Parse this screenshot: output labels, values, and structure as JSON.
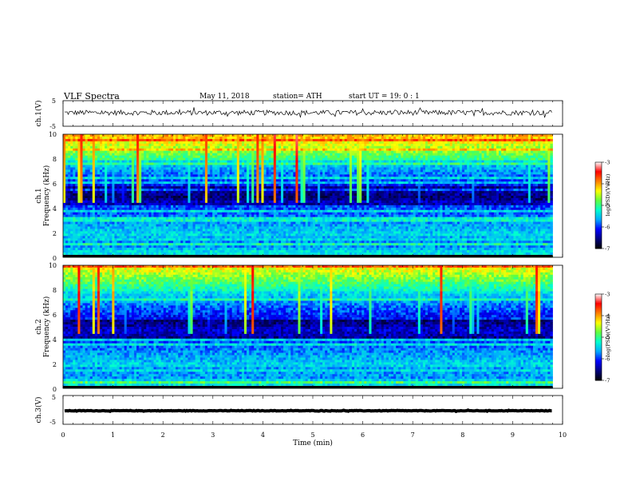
{
  "header": {
    "title": "VLF  Spectra",
    "date": "May 11, 2018",
    "station": "station= ATH",
    "start": "start  UT  =    19: 0   : 1"
  },
  "chart_data": {
    "type": "heatmap",
    "xlabel": "Time  (min)",
    "xlim": [
      0,
      10
    ],
    "x_ticks": [
      "0",
      "1",
      "2",
      "3",
      "4",
      "5",
      "6",
      "7",
      "8",
      "9",
      "10"
    ],
    "data_end_min": 9.8,
    "panels": [
      {
        "id": "ch1-waveform",
        "type": "line",
        "ylabel": "ch.1(V)",
        "ylim": [
          -5,
          5
        ],
        "y_ticks": [
          "5",
          "-5"
        ],
        "trace_level_V": 0.3,
        "noise_amplitude_V": 1.0
      },
      {
        "id": "ch1-spectrogram",
        "type": "heatmap",
        "channel_label": "ch.1",
        "ylabel": "Frequency  (kHz)",
        "ylim": [
          0,
          10
        ],
        "y_ticks": [
          "0",
          "2",
          "4",
          "6",
          "8",
          "10"
        ],
        "colorbar": {
          "label": "log(PSD)(V²/Hz)",
          "range": [
            -7,
            -3
          ],
          "ticks": [
            "-3",
            "-4",
            "-5",
            "-6",
            "-7"
          ]
        }
      },
      {
        "id": "ch2-spectrogram",
        "type": "heatmap",
        "channel_label": "ch.2",
        "ylabel": "Frequency  (kHz)",
        "ylim": [
          0,
          10
        ],
        "y_ticks": [
          "0",
          "2",
          "4",
          "6",
          "8",
          "10"
        ],
        "colorbar": {
          "label": "log(PSD)(V²/Hz)",
          "range": [
            -7,
            -3
          ],
          "ticks": [
            "-3",
            "-4",
            "-5",
            "-6",
            "-7"
          ]
        }
      },
      {
        "id": "ch3-waveform",
        "type": "line",
        "ylabel": "ch.3(V)",
        "ylim": [
          -5,
          5
        ],
        "y_ticks": [
          "5",
          "-5"
        ],
        "trace_level_V": -0.3,
        "noise_amplitude_V": 0.1
      }
    ]
  },
  "colors": {
    "colormap": [
      "#000000",
      "#00007f",
      "#0000ff",
      "#00aaff",
      "#00ffd0",
      "#60ff40",
      "#ffff00",
      "#ff8000",
      "#ff0000",
      "#ffffff"
    ]
  }
}
